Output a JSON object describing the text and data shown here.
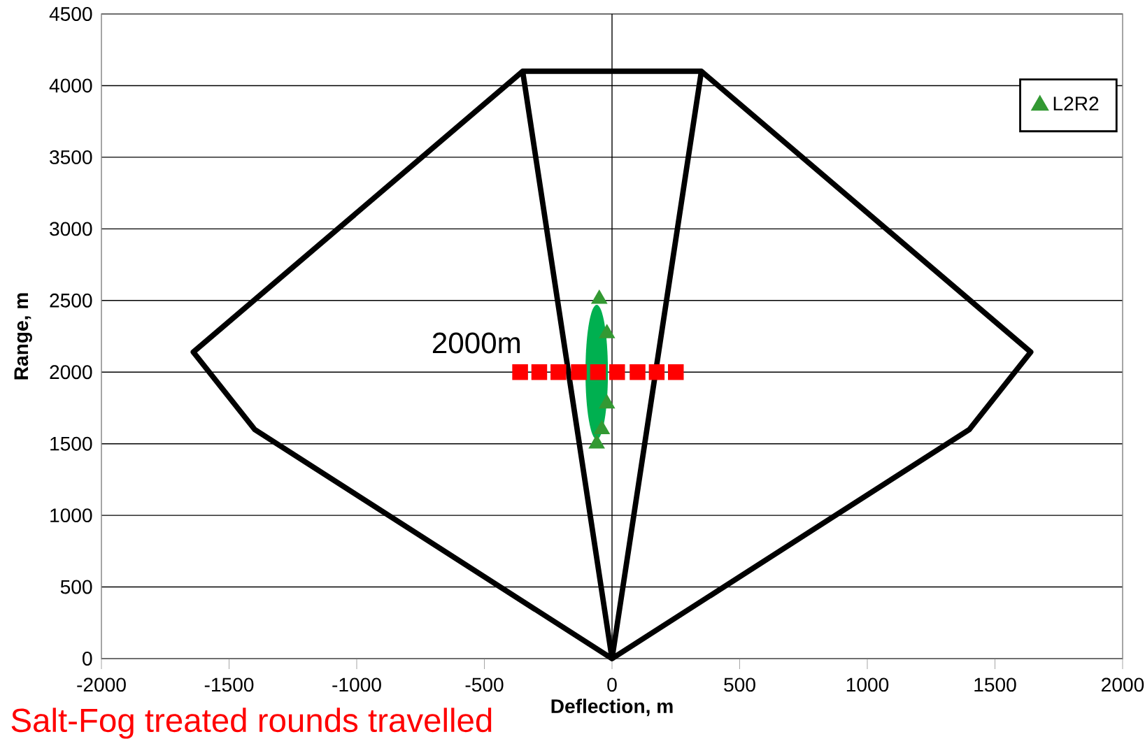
{
  "chart_data": {
    "type": "line",
    "xlabel": "Deflection, m",
    "ylabel": "Range, m",
    "xlim": [
      -2000,
      2000
    ],
    "ylim": [
      0,
      4500
    ],
    "xticks": [
      -2000,
      -1500,
      -1000,
      -500,
      0,
      500,
      1000,
      1500,
      2000
    ],
    "yticks": [
      0,
      500,
      1000,
      1500,
      2000,
      2500,
      3000,
      3500,
      4000,
      4500
    ],
    "grid": "y",
    "legend": "top right",
    "ref_lines": [
      {
        "axis": "x",
        "value": 0
      }
    ],
    "annotations": [
      "2000m",
      "Salt-Fog treated rounds travelled"
    ],
    "series": [
      {
        "color": "#000000",
        "marker": "none",
        "x": [
          -350,
          0,
          -1400,
          -1640,
          -350,
          350,
          1640,
          1400,
          0,
          350
        ],
        "values": [
          4100,
          0,
          1600,
          2140,
          4100,
          4100,
          2140,
          1600,
          0,
          4100
        ]
      },
      {
        "type": "scatter",
        "color": "#ff0000",
        "marker": "square",
        "x": [
          -360,
          -285,
          -210,
          -130,
          -55,
          20,
          100,
          175,
          250
        ],
        "values": [
          2000,
          2000,
          2000,
          2000,
          2000,
          2000,
          2000,
          2000,
          2000
        ]
      },
      {
        "type": "scatter",
        "name": "L2R2",
        "color": "#339933",
        "marker": "triangle",
        "x": [
          -50,
          -20,
          -20,
          -40,
          -60
        ],
        "values": [
          2510,
          2270,
          1780,
          1600,
          1500
        ]
      }
    ]
  }
}
